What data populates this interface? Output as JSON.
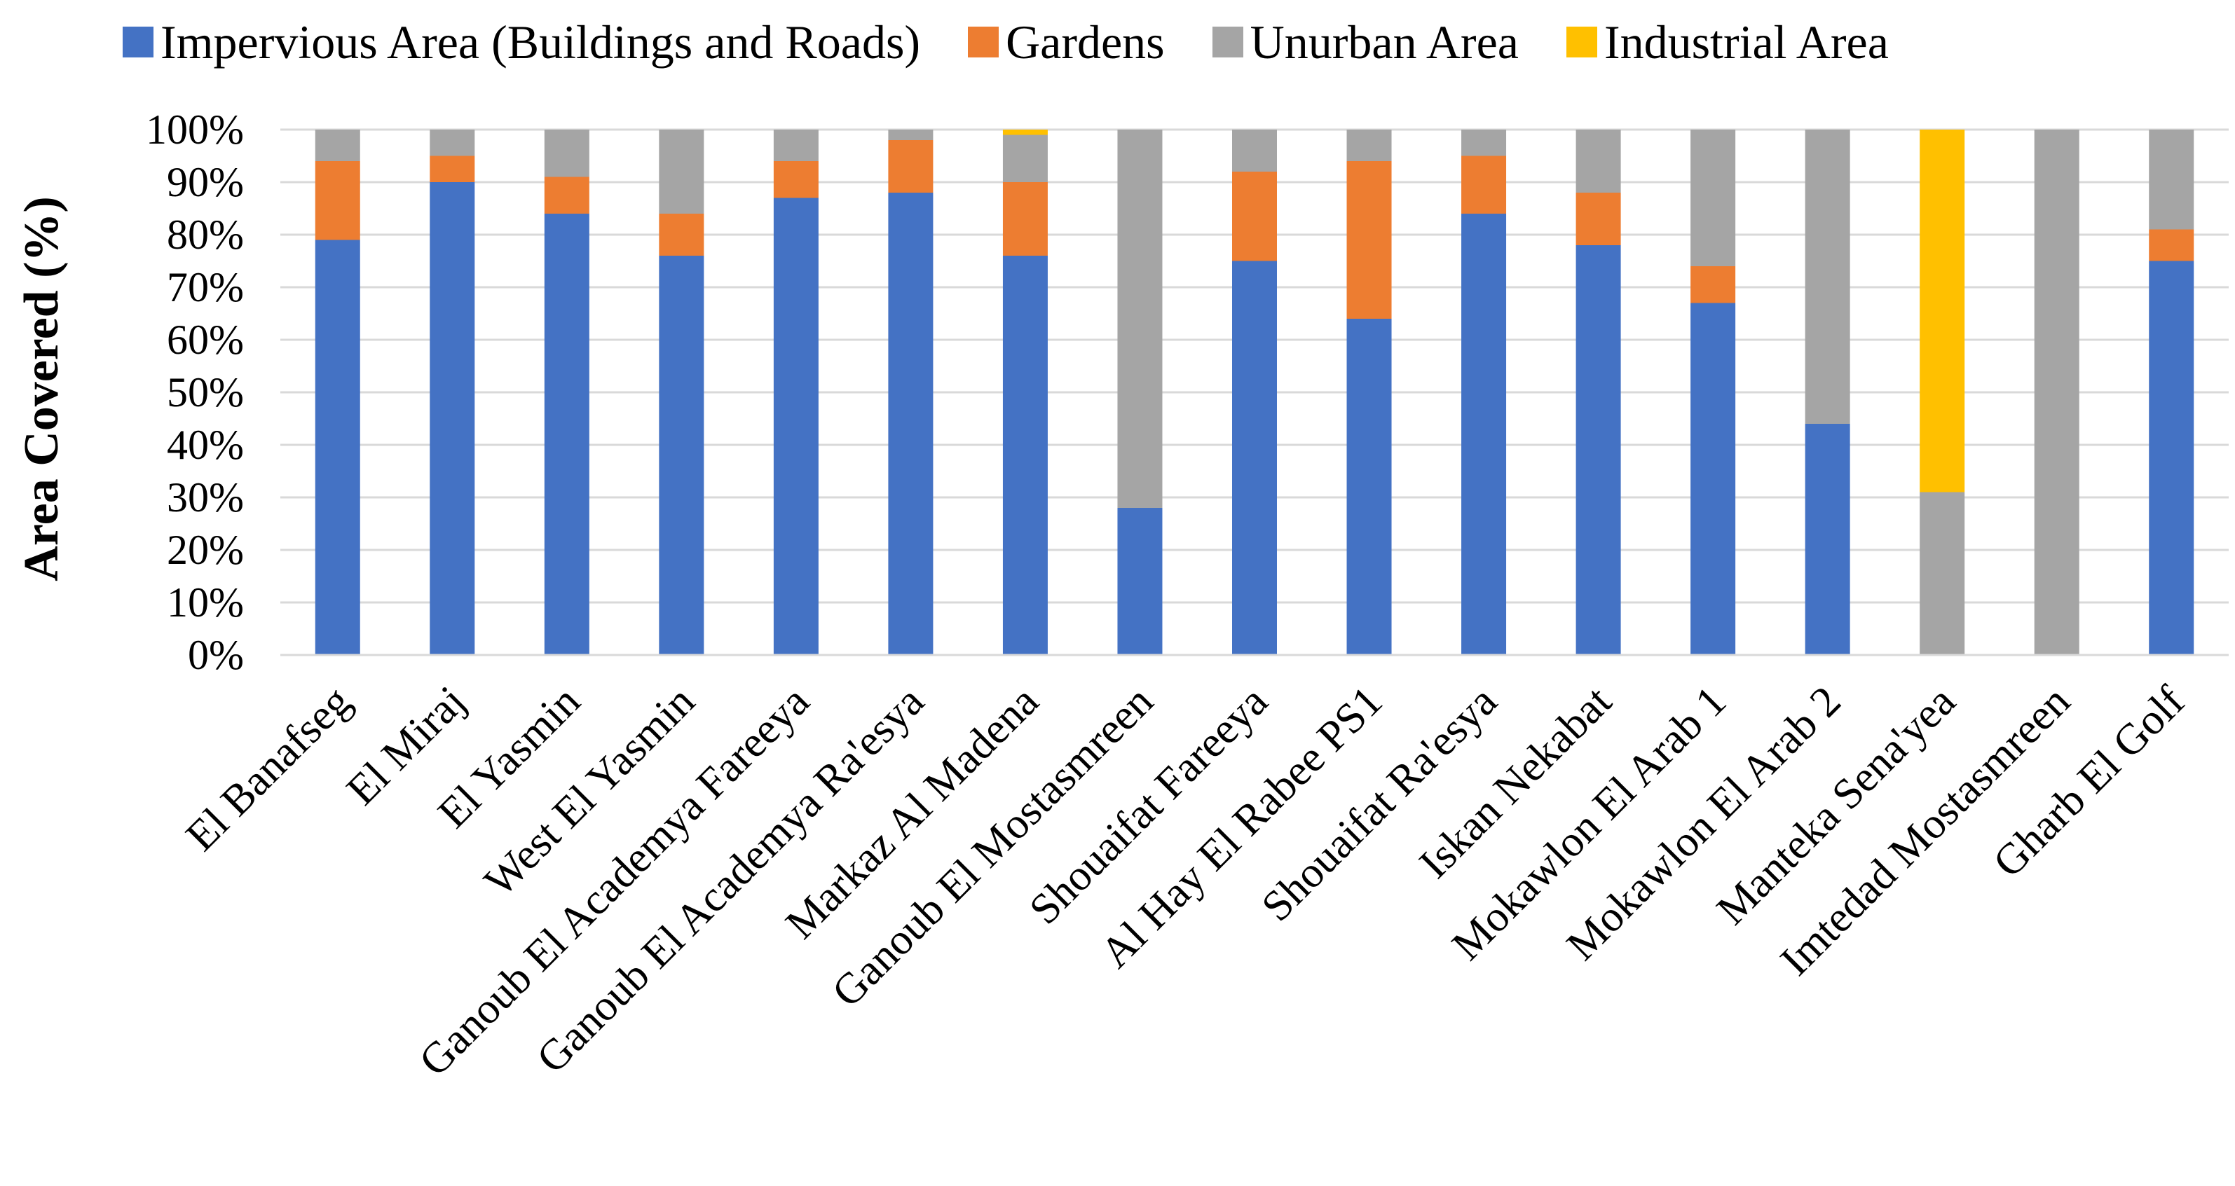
{
  "chart_data": {
    "type": "bar",
    "stacked": true,
    "title": "",
    "xlabel": "",
    "ylabel": "Area Covered (%)",
    "ylim": [
      0,
      100
    ],
    "yticks": [
      0,
      10,
      20,
      30,
      40,
      50,
      60,
      70,
      80,
      90,
      100
    ],
    "ytick_labels": [
      "0%",
      "10%",
      "20%",
      "30%",
      "40%",
      "50%",
      "60%",
      "70%",
      "80%",
      "90%",
      "100%"
    ],
    "grid": true,
    "legend_position": "top",
    "categories": [
      "El Banafseg",
      "El Miraj",
      "El Yasmin",
      "West El Yasmin",
      "Ganoub El Academya Fareeya",
      "Ganoub El Academya Ra'esya",
      "Markaz Al Madena",
      "Ganoub El Mostasmreen",
      "Shouaifat Fareeya",
      "Al Hay El Rabee PS1",
      "Shouaifat Ra'esya",
      "Iskan Nekabat",
      "Mokawlon El Arab 1",
      "Mokawlon El Arab 2",
      "Manteka Sena'yea",
      "Imtedad Mostasmreen",
      "Gharb El Golf"
    ],
    "series": [
      {
        "name": "Impervious Area (Buildings and Roads)",
        "color": "#4472C4",
        "values": [
          79,
          90,
          84,
          76,
          87,
          88,
          76,
          28,
          75,
          64,
          84,
          78,
          67,
          44,
          0,
          0,
          75
        ]
      },
      {
        "name": "Gardens",
        "color": "#ED7D31",
        "values": [
          15,
          5,
          7,
          8,
          7,
          10,
          14,
          0,
          17,
          30,
          11,
          10,
          7,
          0,
          0,
          0,
          6
        ]
      },
      {
        "name": "Unurban Area",
        "color": "#A5A5A5",
        "values": [
          6,
          5,
          9,
          16,
          6,
          2,
          9,
          72,
          8,
          6,
          5,
          12,
          26,
          56,
          31,
          100,
          19
        ]
      },
      {
        "name": "Industrial Area",
        "color": "#FFC000",
        "values": [
          0,
          0,
          0,
          0,
          0,
          0,
          1,
          0,
          0,
          0,
          0,
          0,
          0,
          0,
          69,
          0,
          0
        ]
      }
    ]
  }
}
